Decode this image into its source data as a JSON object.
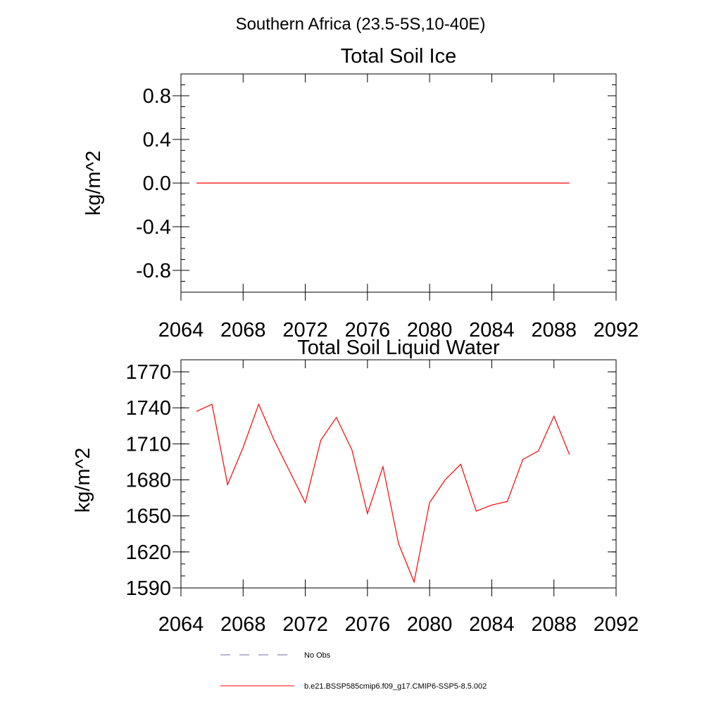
{
  "title": "Southern Africa (23.5-5S,10-40E)",
  "chart_data": [
    {
      "type": "line",
      "title": "Total Soil Ice",
      "xlabel": "",
      "ylabel": "kg/m^2",
      "xlim": [
        2064,
        2092
      ],
      "ylim": [
        -1.0,
        1.0
      ],
      "x_ticks": [
        2064,
        2068,
        2072,
        2076,
        2080,
        2084,
        2088,
        2092
      ],
      "y_ticks": [
        "0.8",
        "0.4",
        "0.0",
        "-0.4",
        "-0.8"
      ],
      "y_tick_values": [
        0.8,
        0.4,
        0.0,
        -0.4,
        -0.8
      ],
      "series": [
        {
          "color": "#ff0000",
          "x": [
            2065,
            2066,
            2067,
            2068,
            2069,
            2070,
            2071,
            2072,
            2073,
            2074,
            2075,
            2076,
            2077,
            2078,
            2079,
            2080,
            2081,
            2082,
            2083,
            2084,
            2085,
            2086,
            2087,
            2088,
            2089
          ],
          "values": [
            0,
            0,
            0,
            0,
            0,
            0,
            0,
            0,
            0,
            0,
            0,
            0,
            0,
            0,
            0,
            0,
            0,
            0,
            0,
            0,
            0,
            0,
            0,
            0,
            0
          ]
        }
      ]
    },
    {
      "type": "line",
      "title": "Total Soil Liquid Water",
      "xlabel": "",
      "ylabel": "kg/m^2",
      "xlim": [
        2064,
        2092
      ],
      "ylim": [
        1590,
        1780
      ],
      "x_ticks": [
        2064,
        2068,
        2072,
        2076,
        2080,
        2084,
        2088,
        2092
      ],
      "y_ticks": [
        "1770",
        "1740",
        "1710",
        "1680",
        "1650",
        "1620",
        "1590"
      ],
      "y_tick_values": [
        1770,
        1740,
        1710,
        1680,
        1650,
        1620,
        1590
      ],
      "series": [
        {
          "color": "#ff0000",
          "x": [
            2065,
            2066,
            2067,
            2068,
            2069,
            2070,
            2071,
            2072,
            2073,
            2074,
            2075,
            2076,
            2077,
            2078,
            2079,
            2080,
            2081,
            2082,
            2083,
            2084,
            2085,
            2086,
            2087,
            2088,
            2089
          ],
          "values": [
            1737,
            1743,
            1676,
            1707,
            1743,
            1713,
            1687,
            1661,
            1713,
            1732,
            1705,
            1652,
            1691,
            1627,
            1595,
            1661,
            1680,
            1693,
            1654,
            1659,
            1662,
            1697,
            1704,
            1733,
            1701
          ]
        }
      ]
    }
  ],
  "legend": [
    {
      "label": "No Obs",
      "style": "dashed",
      "color": "#6a6fa0"
    },
    {
      "label": "b.e21.BSSP585cmip6.f09_g17.CMIP6-SSP5-8.5.002",
      "style": "solid",
      "color": "#ff0000"
    }
  ]
}
